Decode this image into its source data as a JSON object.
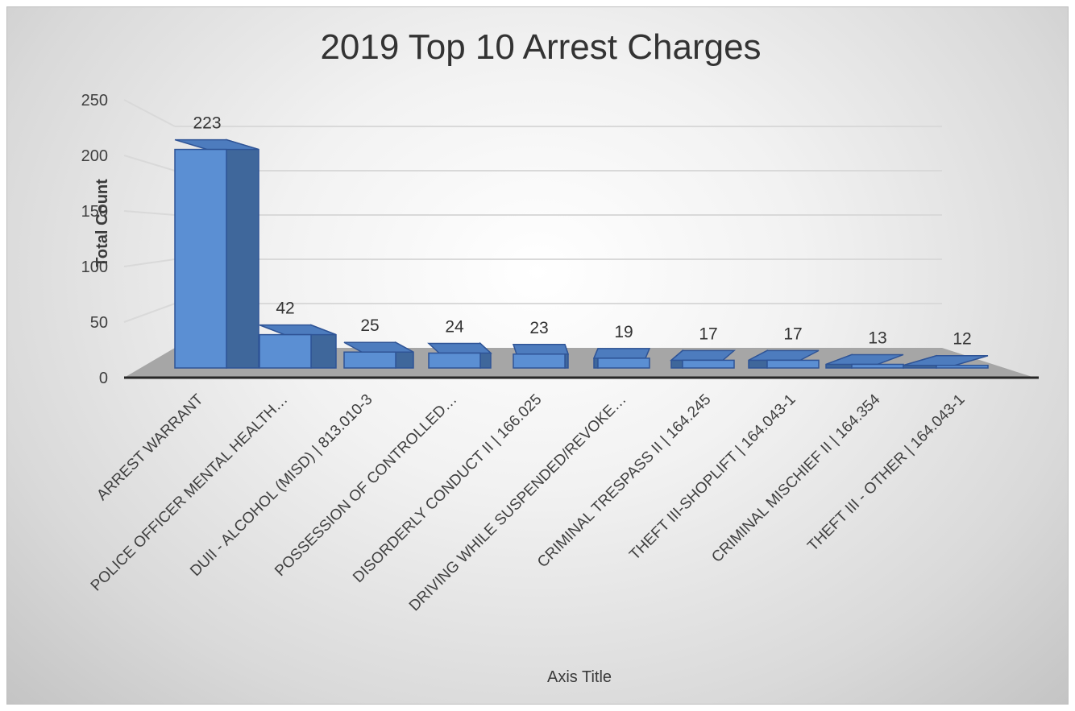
{
  "chart_data": {
    "type": "bar",
    "title": "2019 Top 10 Arrest Charges",
    "xlabel": "Axis Title",
    "ylabel": "Total Count",
    "ylim": [
      0,
      250
    ],
    "yticks": [
      0,
      50,
      100,
      150,
      200,
      250
    ],
    "grid": true,
    "legend": "none",
    "categories": [
      "ARREST WARRANT",
      "POLICE OFFICER MENTAL HEALTH…",
      "DUII - ALCOHOL (MISD) | 813.010-3",
      "POSSESSION OF CONTROLLED…",
      "DISORDERLY CONDUCT II | 166.025",
      "DRIVING WHILE SUSPENDED/REVOKE…",
      "CRIMINAL TRESPASS II | 164.245",
      "THEFT III-SHOPLIFT | 164.043-1",
      "CRIMINAL MISCHIEF II | 164.354",
      "THEFT III - OTHER | 164.043-1"
    ],
    "values": [
      223,
      42,
      25,
      24,
      23,
      19,
      17,
      17,
      13,
      12
    ],
    "colors": {
      "bar_front": "#5b8fd3",
      "bar_side": "#3f679b",
      "bar_top": "#4d7cbe",
      "bar_edge": "#2f5496",
      "floor": "#a6a6a6",
      "gridline": "#d9d9d9"
    }
  }
}
